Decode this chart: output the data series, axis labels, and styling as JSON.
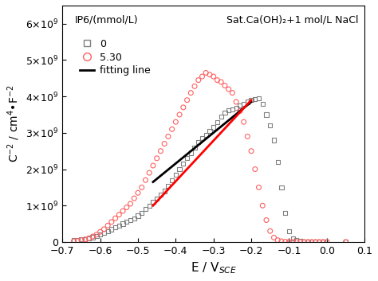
{
  "title": "Sat.Ca(OH)₂+1 mol/L NaCl",
  "xlabel": "E / V$_{SCE}$",
  "ylabel": "C$^{-2}$ / cm$^{4}$•F$^{-2}$",
  "xlim": [
    -0.7,
    0.1
  ],
  "ylim": [
    0,
    6500000000.0
  ],
  "yticks": [
    0,
    1000000000.0,
    2000000000.0,
    3000000000.0,
    4000000000.0,
    5000000000.0,
    6000000000.0
  ],
  "ytick_labels": [
    "0",
    "1×10⁹",
    "2×10⁹",
    "3×10⁹",
    "4×10⁹",
    "5×10⁹",
    "6×10⁹"
  ],
  "xticks": [
    -0.7,
    -0.6,
    -0.5,
    -0.4,
    -0.3,
    -0.2,
    -0.1,
    0.0,
    0.1
  ],
  "series0_label": "0",
  "series0_color": "#808080",
  "series0_x": [
    -0.67,
    -0.66,
    -0.65,
    -0.64,
    -0.63,
    -0.62,
    -0.61,
    -0.6,
    -0.59,
    -0.58,
    -0.57,
    -0.56,
    -0.55,
    -0.54,
    -0.53,
    -0.52,
    -0.51,
    -0.5,
    -0.49,
    -0.48,
    -0.47,
    -0.46,
    -0.45,
    -0.44,
    -0.43,
    -0.42,
    -0.41,
    -0.4,
    -0.39,
    -0.38,
    -0.37,
    -0.36,
    -0.35,
    -0.34,
    -0.33,
    -0.32,
    -0.31,
    -0.3,
    -0.29,
    -0.28,
    -0.27,
    -0.26,
    -0.25,
    -0.24,
    -0.23,
    -0.22,
    -0.21,
    -0.2,
    -0.19,
    -0.18,
    -0.17,
    -0.16,
    -0.15,
    -0.14,
    -0.13,
    -0.12,
    -0.11,
    -0.1,
    -0.09,
    -0.08,
    -0.07,
    -0.06,
    -0.05,
    -0.04,
    -0.03,
    -0.02,
    -0.01,
    0.0,
    0.05
  ],
  "series0_y": [
    50000000.0,
    60000000.0,
    70000000.0,
    80000000.0,
    100000000.0,
    130000000.0,
    160000000.0,
    200000000.0,
    250000000.0,
    300000000.0,
    350000000.0,
    400000000.0,
    450000000.0,
    500000000.0,
    550000000.0,
    600000000.0,
    650000000.0,
    720000000.0,
    800000000.0,
    900000000.0,
    1000000000.0,
    1100000000.0,
    1200000000.0,
    1300000000.0,
    1400000000.0,
    1550000000.0,
    1700000000.0,
    1850000000.0,
    2000000000.0,
    2150000000.0,
    2300000000.0,
    2450000000.0,
    2600000000.0,
    2750000000.0,
    2850000000.0,
    2950000000.0,
    3050000000.0,
    3150000000.0,
    3300000000.0,
    3450000000.0,
    3550000000.0,
    3620000000.0,
    3650000000.0,
    3680000000.0,
    3750000000.0,
    3800000000.0,
    3850000000.0,
    3900000000.0,
    3920000000.0,
    3950000000.0,
    3800000000.0,
    3500000000.0,
    3200000000.0,
    2800000000.0,
    2200000000.0,
    1500000000.0,
    800000000.0,
    300000000.0,
    100000000.0,
    50000000.0,
    20000000.0,
    10000000.0,
    8000000.0,
    5000000.0,
    2000000.0,
    1000000.0,
    500000.0,
    200000.0,
    200000.0
  ],
  "series1_label": "5.30",
  "series1_color": "#FF6060",
  "series1_x": [
    -0.67,
    -0.66,
    -0.65,
    -0.64,
    -0.63,
    -0.62,
    -0.61,
    -0.6,
    -0.59,
    -0.58,
    -0.57,
    -0.56,
    -0.55,
    -0.54,
    -0.53,
    -0.52,
    -0.51,
    -0.5,
    -0.49,
    -0.48,
    -0.47,
    -0.46,
    -0.45,
    -0.44,
    -0.43,
    -0.42,
    -0.41,
    -0.4,
    -0.39,
    -0.38,
    -0.37,
    -0.36,
    -0.35,
    -0.34,
    -0.33,
    -0.32,
    -0.31,
    -0.3,
    -0.29,
    -0.28,
    -0.27,
    -0.26,
    -0.25,
    -0.24,
    -0.23,
    -0.22,
    -0.21,
    -0.2,
    -0.19,
    -0.18,
    -0.17,
    -0.16,
    -0.15,
    -0.14,
    -0.13,
    -0.12,
    -0.11,
    -0.1,
    -0.09,
    -0.08,
    -0.07,
    -0.06,
    -0.05,
    -0.04,
    -0.03,
    -0.02,
    -0.01,
    0.0,
    0.05
  ],
  "series1_y": [
    20000000.0,
    30000000.0,
    50000000.0,
    70000000.0,
    100000000.0,
    150000000.0,
    200000000.0,
    280000000.0,
    350000000.0,
    450000000.0,
    550000000.0,
    650000000.0,
    750000000.0,
    850000000.0,
    950000000.0,
    1050000000.0,
    1200000000.0,
    1350000000.0,
    1500000000.0,
    1700000000.0,
    1900000000.0,
    2100000000.0,
    2300000000.0,
    2500000000.0,
    2700000000.0,
    2900000000.0,
    3100000000.0,
    3300000000.0,
    3500000000.0,
    3700000000.0,
    3900000000.0,
    4100000000.0,
    4280000000.0,
    4450000000.0,
    4550000000.0,
    4650000000.0,
    4600000000.0,
    4550000000.0,
    4450000000.0,
    4400000000.0,
    4300000000.0,
    4200000000.0,
    4100000000.0,
    3850000000.0,
    3600000000.0,
    3300000000.0,
    2900000000.0,
    2500000000.0,
    2000000000.0,
    1500000000.0,
    1000000000.0,
    600000000.0,
    300000000.0,
    120000000.0,
    50000000.0,
    20000000.0,
    10000000.0,
    5000000.0,
    2000000.0,
    800000.0,
    300000.0,
    150000.0,
    80000.0,
    40000.0,
    20000.0,
    10000.0,
    5000.0,
    2000.0,
    2000.0
  ],
  "fit0_x": [
    -0.46,
    -0.2
  ],
  "fit0_y": [
    1650000000.0,
    3850000000.0
  ],
  "fit0_color": "black",
  "fit1_x": [
    -0.46,
    -0.2
  ],
  "fit1_y": [
    1000000000.0,
    3900000000.0
  ],
  "fit1_color": "red",
  "legend_label0": "IP6/(mmol/L)",
  "legend_text0": "0",
  "legend_text1": "5.30",
  "legend_text2": "fitting line"
}
